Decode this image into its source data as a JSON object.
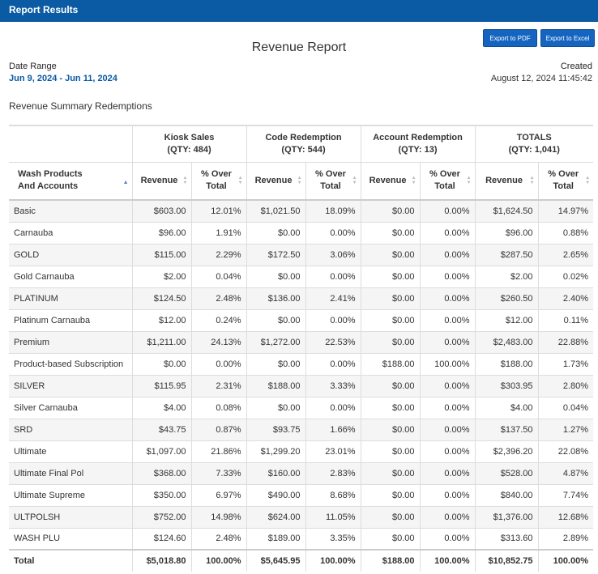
{
  "window": {
    "title": "Report Results"
  },
  "toolbar": {
    "export_pdf": "Export to PDF",
    "export_excel": "Export to Excel"
  },
  "report": {
    "title": "Revenue Report",
    "date_range_label": "Date Range",
    "date_range_value": "Jun 9, 2024 - Jun 11, 2024",
    "created_label": "Created",
    "created_value": "August 12, 2024 11:45:42",
    "section_title": "Revenue Summary Redemptions"
  },
  "table": {
    "groups": [
      {
        "name": "Kiosk Sales",
        "qty": "(QTY: 484)"
      },
      {
        "name": "Code Redemption",
        "qty": "(QTY: 544)"
      },
      {
        "name": "Account Redemption",
        "qty": "(QTY: 13)"
      },
      {
        "name": "TOTALS",
        "qty": "(QTY: 1,041)"
      }
    ],
    "first_col_header_line1": "Wash Products",
    "first_col_header_line2": "And Accounts",
    "revenue_header": "Revenue",
    "pct_header_line1": "% Over",
    "pct_header_line2": "Total",
    "rows": [
      [
        "Basic",
        "$603.00",
        "12.01%",
        "$1,021.50",
        "18.09%",
        "$0.00",
        "0.00%",
        "$1,624.50",
        "14.97%"
      ],
      [
        "Carnauba",
        "$96.00",
        "1.91%",
        "$0.00",
        "0.00%",
        "$0.00",
        "0.00%",
        "$96.00",
        "0.88%"
      ],
      [
        "GOLD",
        "$115.00",
        "2.29%",
        "$172.50",
        "3.06%",
        "$0.00",
        "0.00%",
        "$287.50",
        "2.65%"
      ],
      [
        "Gold Carnauba",
        "$2.00",
        "0.04%",
        "$0.00",
        "0.00%",
        "$0.00",
        "0.00%",
        "$2.00",
        "0.02%"
      ],
      [
        "PLATINUM",
        "$124.50",
        "2.48%",
        "$136.00",
        "2.41%",
        "$0.00",
        "0.00%",
        "$260.50",
        "2.40%"
      ],
      [
        "Platinum Carnauba",
        "$12.00",
        "0.24%",
        "$0.00",
        "0.00%",
        "$0.00",
        "0.00%",
        "$12.00",
        "0.11%"
      ],
      [
        "Premium",
        "$1,211.00",
        "24.13%",
        "$1,272.00",
        "22.53%",
        "$0.00",
        "0.00%",
        "$2,483.00",
        "22.88%"
      ],
      [
        "Product-based Subscription",
        "$0.00",
        "0.00%",
        "$0.00",
        "0.00%",
        "$188.00",
        "100.00%",
        "$188.00",
        "1.73%"
      ],
      [
        "SILVER",
        "$115.95",
        "2.31%",
        "$188.00",
        "3.33%",
        "$0.00",
        "0.00%",
        "$303.95",
        "2.80%"
      ],
      [
        "Silver Carnauba",
        "$4.00",
        "0.08%",
        "$0.00",
        "0.00%",
        "$0.00",
        "0.00%",
        "$4.00",
        "0.04%"
      ],
      [
        "SRD",
        "$43.75",
        "0.87%",
        "$93.75",
        "1.66%",
        "$0.00",
        "0.00%",
        "$137.50",
        "1.27%"
      ],
      [
        "Ultimate",
        "$1,097.00",
        "21.86%",
        "$1,299.20",
        "23.01%",
        "$0.00",
        "0.00%",
        "$2,396.20",
        "22.08%"
      ],
      [
        "Ultimate Final Pol",
        "$368.00",
        "7.33%",
        "$160.00",
        "2.83%",
        "$0.00",
        "0.00%",
        "$528.00",
        "4.87%"
      ],
      [
        "Ultimate Supreme",
        "$350.00",
        "6.97%",
        "$490.00",
        "8.68%",
        "$0.00",
        "0.00%",
        "$840.00",
        "7.74%"
      ],
      [
        "ULTPOLSH",
        "$752.00",
        "14.98%",
        "$624.00",
        "11.05%",
        "$0.00",
        "0.00%",
        "$1,376.00",
        "12.68%"
      ],
      [
        "WASH PLU",
        "$124.60",
        "2.48%",
        "$189.00",
        "3.35%",
        "$0.00",
        "0.00%",
        "$313.60",
        "2.89%"
      ]
    ],
    "total_row": [
      "Total",
      "$5,018.80",
      "100.00%",
      "$5,645.95",
      "100.00%",
      "$188.00",
      "100.00%",
      "$10,852.75",
      "100.00%"
    ]
  }
}
